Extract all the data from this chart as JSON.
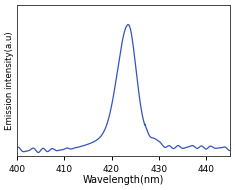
{
  "xlabel": "Wavelength(nm)",
  "ylabel": "Emission intensity(a.u)",
  "xlim": [
    400,
    445
  ],
  "line_color": "#3355bb",
  "line_width": 0.9,
  "x_tick_positions": [
    400,
    410,
    420,
    430,
    440
  ],
  "x_tick_labels": [
    "400",
    "410",
    "420",
    "430",
    "440"
  ],
  "background_color": "#ffffff",
  "fig_background": "#ffffff"
}
